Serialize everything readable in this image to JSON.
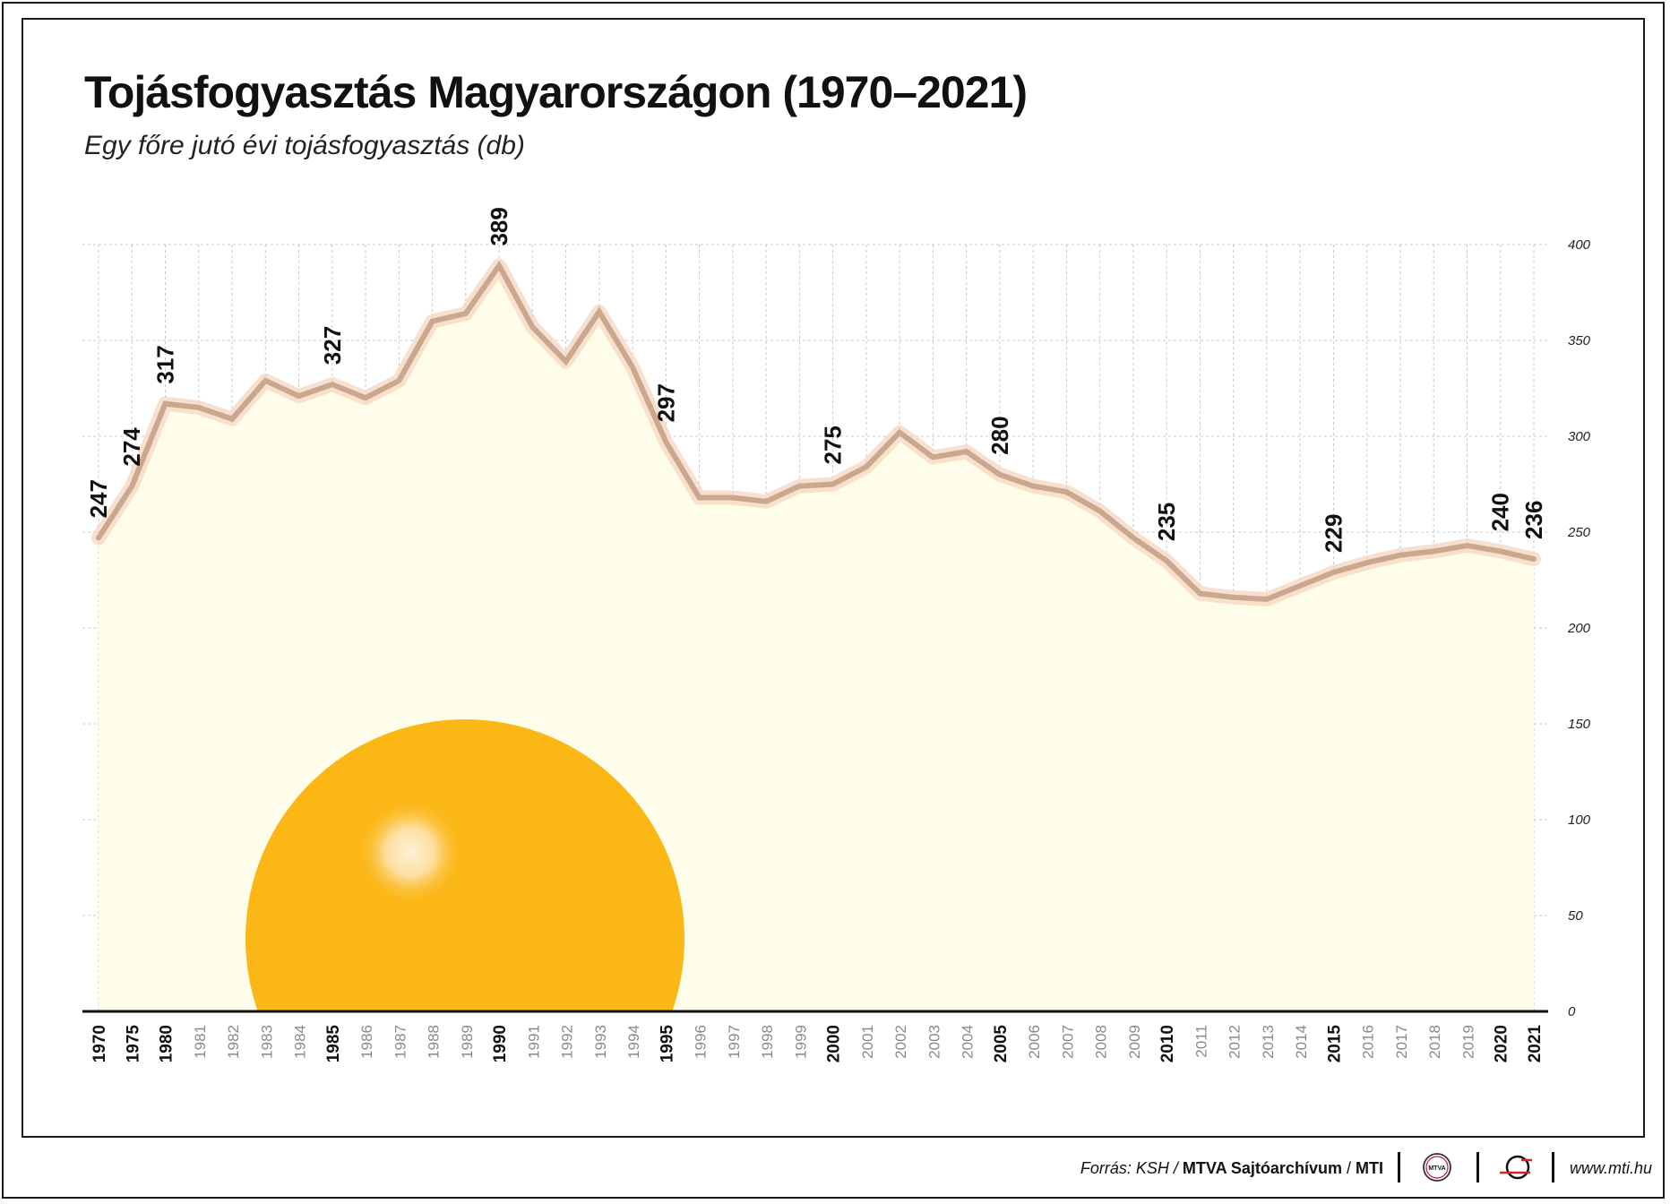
{
  "title": "Tojásfogyasztás Magyarországon (1970–2021)",
  "subtitle": "Egy főre jutó évi tojásfogyasztás (db)",
  "chart_data": {
    "type": "area",
    "title": "Tojásfogyasztás Magyarországon (1970–2021)",
    "subtitle": "Egy főre jutó évi tojásfogyasztás (db)",
    "categories": [
      "1970",
      "1975",
      "1980",
      "1981",
      "1982",
      "1983",
      "1984",
      "1985",
      "1986",
      "1987",
      "1988",
      "1989",
      "1990",
      "1991",
      "1992",
      "1993",
      "1994",
      "1995",
      "1996",
      "1997",
      "1998",
      "1999",
      "2000",
      "2001",
      "2002",
      "2003",
      "2004",
      "2005",
      "2006",
      "2007",
      "2008",
      "2009",
      "2010",
      "2011",
      "2012",
      "2013",
      "2014",
      "2015",
      "2016",
      "2017",
      "2018",
      "2019",
      "2020",
      "2021"
    ],
    "bold_categories": [
      "1970",
      "1975",
      "1980",
      "1985",
      "1990",
      "1995",
      "2000",
      "2005",
      "2010",
      "2015",
      "2020",
      "2021"
    ],
    "values": [
      247,
      274,
      317,
      315,
      309,
      329,
      321,
      327,
      320,
      329,
      360,
      364,
      389,
      357,
      339,
      365,
      336,
      297,
      268,
      268,
      266,
      274,
      275,
      284,
      302,
      289,
      292,
      280,
      274,
      271,
      261,
      247,
      235,
      218,
      216,
      215,
      222,
      229,
      234,
      238,
      240,
      243,
      240,
      236
    ],
    "data_labels": [
      {
        "category": "1970",
        "value": "247"
      },
      {
        "category": "1975",
        "value": "274"
      },
      {
        "category": "1980",
        "value": "317"
      },
      {
        "category": "1985",
        "value": "327"
      },
      {
        "category": "1990",
        "value": "389"
      },
      {
        "category": "1995",
        "value": "297"
      },
      {
        "category": "2000",
        "value": "275"
      },
      {
        "category": "2005",
        "value": "280"
      },
      {
        "category": "2010",
        "value": "235"
      },
      {
        "category": "2015",
        "value": "229"
      },
      {
        "category": "2020",
        "value": "240"
      },
      {
        "category": "2021",
        "value": "236"
      }
    ],
    "y_ticks": [
      "0",
      "50",
      "100",
      "150",
      "200",
      "250",
      "300",
      "350",
      "400"
    ],
    "ylim": [
      0,
      400
    ],
    "y_axis_side": "right",
    "grid": true,
    "colors": {
      "line": "#c9a88f",
      "line_glow": "#f6d6c0",
      "area_fill": "#fefde9",
      "grid": "#c8c8c8",
      "yolk": "#fbb716",
      "yolk_highlight": "#fde7bf"
    }
  },
  "footer": {
    "source_prefix": "Forrás: KSH /",
    "source_bold": "MTVA Sajtóarchívum",
    "source_sep": "/",
    "source_mti": "MTI",
    "mtva_logo_text": "MTVA",
    "website": "www.mti.hu"
  }
}
